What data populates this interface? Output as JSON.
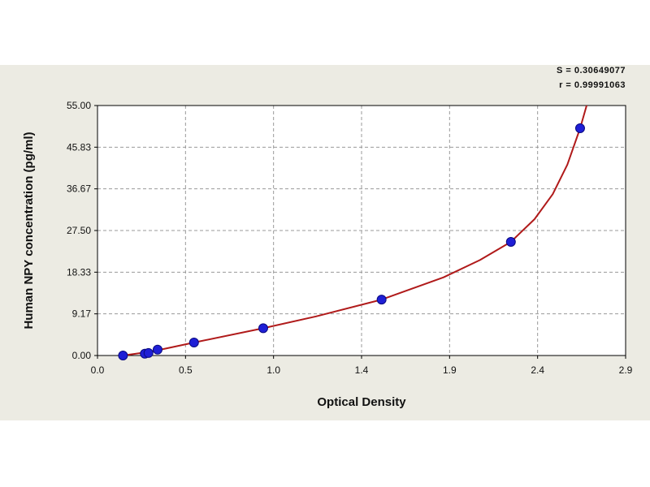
{
  "stats": {
    "s_text": "S = 0.30649077",
    "r_text": "r = 0.99991063"
  },
  "chart_data": {
    "type": "scatter",
    "title": "",
    "xlabel": "Optical Density",
    "ylabel": "Human NPY concentration (pg/ml)",
    "xlim": [
      0.0,
      2.9
    ],
    "ylim": [
      0.0,
      55.0
    ],
    "xticks": [
      "0.0",
      "0.5",
      "1.0",
      "1.4",
      "1.9",
      "2.4",
      "2.9"
    ],
    "yticks": [
      "0.00",
      "9.17",
      "18.33",
      "27.50",
      "36.67",
      "45.83",
      "55.00"
    ],
    "grid": true,
    "series": [
      {
        "kind": "points",
        "color": "#1f1fd6",
        "x": [
          0.14,
          0.26,
          0.28,
          0.33,
          0.53,
          0.91,
          1.56,
          2.27,
          2.65
        ],
        "y": [
          0.0,
          0.4,
          0.55,
          1.3,
          2.85,
          6.0,
          12.3,
          25.0,
          50.0
        ]
      },
      {
        "kind": "fit-curve",
        "color": "#b01a1a",
        "x": [
          0.14,
          0.3,
          0.53,
          0.91,
          1.2,
          1.56,
          1.9,
          2.1,
          2.27,
          2.4,
          2.5,
          2.58,
          2.65,
          2.7
        ],
        "y": [
          0.0,
          0.9,
          2.85,
          6.0,
          8.6,
          12.3,
          17.2,
          21.0,
          25.0,
          30.0,
          35.5,
          42.0,
          50.0,
          57.0
        ]
      }
    ]
  }
}
